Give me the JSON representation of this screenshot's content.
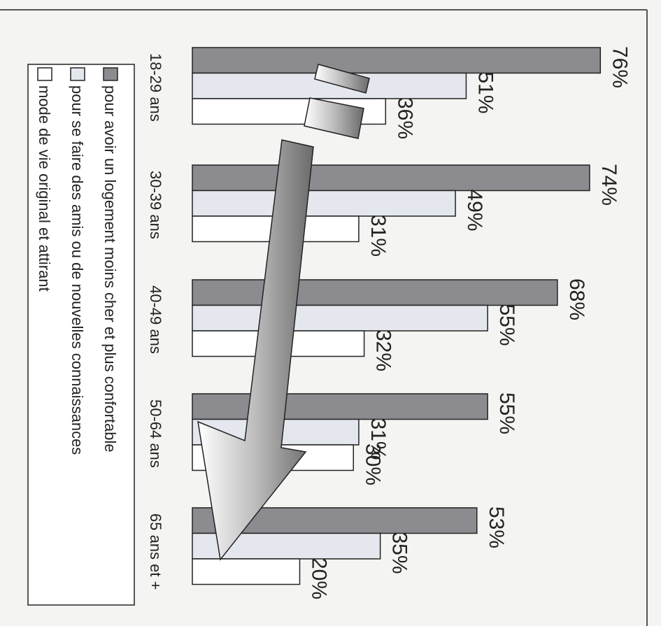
{
  "chart_data": {
    "type": "bar",
    "orientation": "horizontal",
    "categories": [
      "18-29 ans",
      "30-39 ans",
      "40-49 ans",
      "50-64 ans",
      "65 ans et +"
    ],
    "series": [
      {
        "name": "pour avoir un logement moins cher et plus confortable",
        "color": "#8c8c90",
        "values": [
          76,
          74,
          68,
          55,
          53
        ],
        "value_labels": [
          "76%",
          "74%",
          "68%",
          "55%",
          "53%"
        ]
      },
      {
        "name": "pour se faire des amis ou de nouvelles connaissances",
        "color": "#e4e8ee",
        "values": [
          51,
          49,
          55,
          31,
          35
        ],
        "value_labels": [
          "51%",
          "49%",
          "55%",
          "31%",
          "35%"
        ]
      },
      {
        "name": "mode de vie original et attirant",
        "color": "#ffffff",
        "values": [
          36,
          31,
          32,
          30,
          20
        ],
        "value_labels": [
          "36%",
          "31%",
          "32%",
          "30%",
          "20%"
        ]
      }
    ],
    "xlim": [
      0,
      80
    ]
  }
}
